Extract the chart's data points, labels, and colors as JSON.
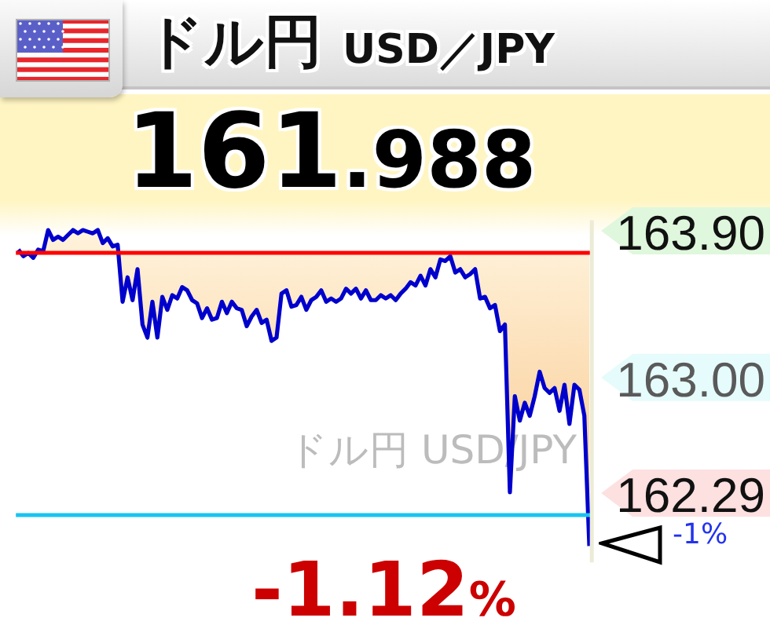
{
  "chart_data": {
    "type": "line",
    "title": "ドル円",
    "subtitle": "USD／JPY",
    "annotations": [
      "161.988",
      "-1.12%",
      "ドル円 USD/JPY",
      "-1%"
    ],
    "categories": [
      null,
      null,
      null,
      null,
      null,
      null,
      null,
      null,
      null,
      null,
      null,
      null,
      null,
      null,
      null,
      null,
      null,
      null,
      null,
      null,
      null,
      null,
      null,
      null,
      null,
      null,
      null,
      null,
      null,
      null,
      null,
      null,
      null,
      null,
      null,
      null,
      null,
      null,
      null,
      null,
      null,
      null,
      null,
      null,
      null,
      null,
      null,
      null,
      null,
      null,
      null,
      null,
      null,
      null,
      null,
      null,
      null,
      null,
      null,
      null,
      null,
      null,
      null,
      null,
      null,
      null,
      null,
      null,
      null,
      null,
      null,
      null,
      null,
      null,
      null,
      null,
      null,
      null,
      null,
      null,
      null,
      null,
      null,
      null,
      null,
      null,
      null,
      null,
      null,
      null,
      null,
      null,
      null,
      null,
      null,
      null,
      null,
      null,
      null,
      null,
      null,
      null,
      null,
      null,
      null,
      null,
      null,
      null,
      null,
      null,
      null,
      null,
      null,
      null,
      null,
      null
    ],
    "series": [
      {
        "color": "#0000cc",
        "values": [
          163.92,
          163.88,
          163.9,
          163.87,
          163.92,
          163.91,
          164.04,
          163.98,
          164.0,
          163.98,
          164.01,
          164.04,
          164.02,
          164.04,
          164.03,
          164.02,
          164.04,
          163.96,
          163.99,
          163.94,
          163.95,
          163.6,
          163.75,
          163.61,
          163.8,
          163.46,
          163.38,
          163.6,
          163.38,
          163.63,
          163.55,
          163.64,
          163.62,
          163.69,
          163.67,
          163.61,
          163.59,
          163.5,
          163.56,
          163.49,
          163.5,
          163.6,
          163.53,
          163.6,
          163.56,
          163.55,
          163.45,
          163.51,
          163.55,
          163.47,
          163.49,
          163.36,
          163.38,
          163.65,
          163.67,
          163.57,
          163.58,
          163.63,
          163.55,
          163.61,
          163.63,
          163.67,
          163.6,
          163.62,
          163.6,
          163.62,
          163.68,
          163.65,
          163.68,
          163.62,
          163.67,
          163.61,
          163.61,
          163.64,
          163.62,
          163.64,
          163.61,
          163.65,
          163.68,
          163.72,
          163.7,
          163.76,
          163.7,
          163.8,
          163.75,
          163.86,
          163.85,
          163.88,
          163.78,
          163.8,
          163.75,
          163.77,
          163.8,
          163.62,
          163.63,
          163.56,
          163.58,
          163.42,
          163.46,
          162.43,
          163.02,
          162.87,
          162.98,
          162.9,
          163.02,
          163.17,
          163.07,
          163.04,
          163.07,
          162.93,
          163.09,
          162.85,
          163.09,
          163.06,
          162.9,
          162.1
        ],
        "lower": [
          163.9,
          163.88,
          163.9,
          163.87,
          163.9,
          163.9,
          163.9,
          163.9,
          163.9,
          163.9,
          163.9,
          163.9,
          163.9,
          163.9,
          163.9,
          163.9,
          163.9,
          163.9,
          163.9,
          163.9,
          163.9,
          163.6,
          163.75,
          163.61,
          163.8,
          163.46,
          163.38,
          163.6,
          163.38,
          163.63,
          163.55,
          163.64,
          163.62,
          163.69,
          163.67,
          163.61,
          163.59,
          163.5,
          163.56,
          163.49,
          163.5,
          163.6,
          163.53,
          163.6,
          163.56,
          163.55,
          163.45,
          163.51,
          163.55,
          163.47,
          163.49,
          163.36,
          163.38,
          163.65,
          163.67,
          163.57,
          163.58,
          163.63,
          163.55,
          163.61,
          163.63,
          163.67,
          163.6,
          163.62,
          163.6,
          163.62,
          163.68,
          163.65,
          163.68,
          163.62,
          163.67,
          163.61,
          163.61,
          163.64,
          163.62,
          163.64,
          163.61,
          163.65,
          163.68,
          163.72,
          163.7,
          163.76,
          163.7,
          163.8,
          163.75,
          163.86,
          163.85,
          163.88,
          163.78,
          163.8,
          163.75,
          163.77,
          163.8,
          163.62,
          163.63,
          163.56,
          163.58,
          163.42,
          163.46,
          162.43,
          163.02,
          162.87,
          162.98,
          162.9,
          163.02,
          163.17,
          163.07,
          163.04,
          163.07,
          162.93,
          163.09,
          162.85,
          163.09,
          163.06,
          162.9,
          162.1
        ],
        "upper": [
          163.92,
          163.9,
          163.9,
          163.9,
          163.92,
          163.91,
          164.04,
          163.98,
          164.0,
          163.98,
          164.01,
          164.04,
          164.02,
          164.04,
          164.03,
          164.02,
          164.04,
          163.96,
          163.99,
          163.94,
          163.95,
          163.9,
          163.9,
          163.9,
          163.9,
          163.9,
          163.9,
          163.9,
          163.9,
          163.9,
          163.9,
          163.9,
          163.9,
          163.9,
          163.9,
          163.9,
          163.9,
          163.9,
          163.9,
          163.9,
          163.9,
          163.9,
          163.9,
          163.9,
          163.9,
          163.9,
          163.9,
          163.9,
          163.9,
          163.9,
          163.9,
          163.9,
          163.9,
          163.9,
          163.9,
          163.9,
          163.9,
          163.9,
          163.9,
          163.9,
          163.9,
          163.9,
          163.9,
          163.9,
          163.9,
          163.9,
          163.9,
          163.9,
          163.9,
          163.9,
          163.9,
          163.9,
          163.9,
          163.9,
          163.9,
          163.9,
          163.9,
          163.9,
          163.9,
          163.9,
          163.9,
          163.9,
          163.9,
          163.9,
          163.9,
          163.9,
          163.9,
          163.9,
          163.9,
          163.9,
          163.9,
          163.9,
          163.9,
          163.9,
          163.9,
          163.9,
          163.9,
          163.9,
          163.9,
          163.9,
          163.9,
          163.9,
          163.9,
          163.9,
          163.9,
          163.9,
          163.9,
          163.9,
          163.9,
          163.9,
          163.9,
          163.9,
          163.9,
          163.9,
          163.9,
          163.9
        ]
      }
    ],
    "ylim": [
      162.0,
      164.1
    ],
    "yticks": [
      162.29,
      {
        "value": 163,
        "label": "163.00"
      },
      {
        "value": 163.9,
        "label": "163.90"
      }
    ],
    "ref_lines": [
      {
        "axis": "y",
        "value": 163.9,
        "color": "#ff0000"
      },
      {
        "axis": "y",
        "value": 162.29,
        "color": "#18c4f0"
      }
    ],
    "tick_labels": "y",
    "line_style": "solid"
  }
}
